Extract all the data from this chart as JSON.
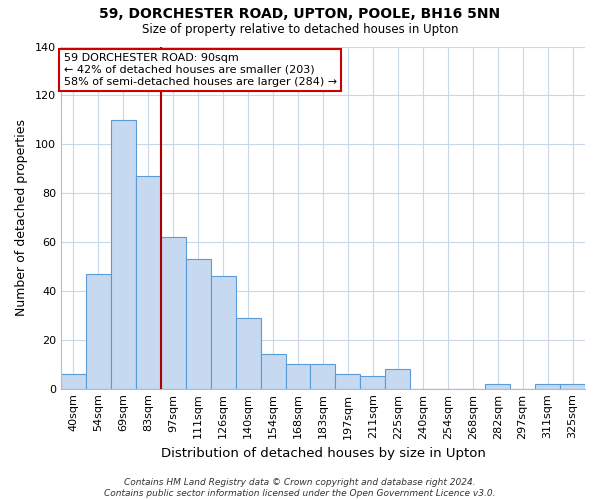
{
  "title": "59, DORCHESTER ROAD, UPTON, POOLE, BH16 5NN",
  "subtitle": "Size of property relative to detached houses in Upton",
  "xlabel": "Distribution of detached houses by size in Upton",
  "ylabel": "Number of detached properties",
  "bar_labels": [
    "40sqm",
    "54sqm",
    "69sqm",
    "83sqm",
    "97sqm",
    "111sqm",
    "126sqm",
    "140sqm",
    "154sqm",
    "168sqm",
    "183sqm",
    "197sqm",
    "211sqm",
    "225sqm",
    "240sqm",
    "254sqm",
    "268sqm",
    "282sqm",
    "297sqm",
    "311sqm",
    "325sqm"
  ],
  "bar_values": [
    6,
    47,
    110,
    87,
    62,
    53,
    46,
    29,
    14,
    10,
    10,
    6,
    5,
    8,
    0,
    0,
    0,
    2,
    0,
    2,
    2
  ],
  "bar_color": "#c6d9f0",
  "bar_edge_color": "#5b9bd5",
  "highlight_line_color": "#aa0000",
  "annotation_text": "59 DORCHESTER ROAD: 90sqm\n← 42% of detached houses are smaller (203)\n58% of semi-detached houses are larger (284) →",
  "annotation_box_color": "#ffffff",
  "annotation_box_edge": "#cc0000",
  "ylim": [
    0,
    140
  ],
  "yticks": [
    0,
    20,
    40,
    60,
    80,
    100,
    120,
    140
  ],
  "footer": "Contains HM Land Registry data © Crown copyright and database right 2024.\nContains public sector information licensed under the Open Government Licence v3.0.",
  "background_color": "#ffffff",
  "grid_color": "#c8d8e8"
}
